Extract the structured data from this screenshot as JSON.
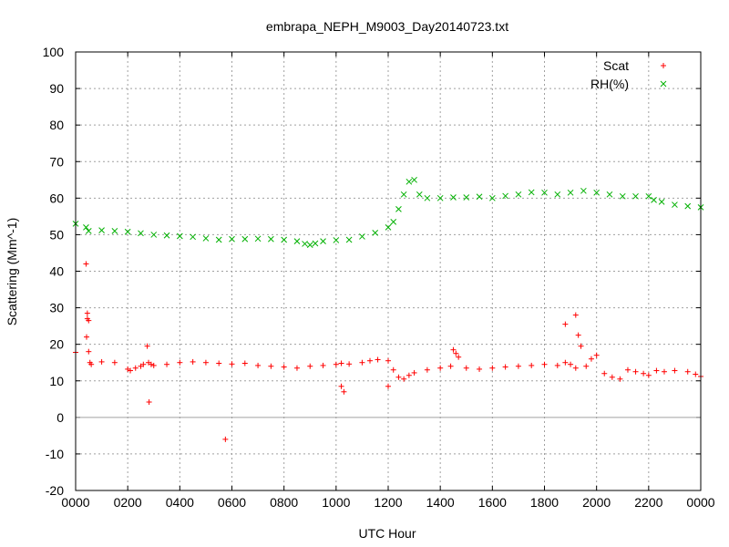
{
  "chart_data": {
    "type": "scatter",
    "title": "embrapa_NEPH_M9003_Day20140723.txt",
    "xlabel": "UTC Hour",
    "ylabel": "Scattering (Mm^-1)",
    "xlim": [
      0,
      24
    ],
    "ylim": [
      -20,
      100
    ],
    "grid": true,
    "legend_position": "top-right",
    "x_ticks": [
      0,
      2,
      4,
      6,
      8,
      10,
      12,
      14,
      16,
      18,
      20,
      22,
      24
    ],
    "x_tick_labels": [
      "0000",
      "0200",
      "0400",
      "0600",
      "0800",
      "1000",
      "1200",
      "1400",
      "1600",
      "1800",
      "2000",
      "2200",
      "0000"
    ],
    "y_ticks": [
      -20,
      -10,
      0,
      10,
      20,
      30,
      40,
      50,
      60,
      70,
      80,
      90,
      100
    ],
    "y_tick_labels": [
      "-20",
      "-10",
      "0",
      "10",
      "20",
      "30",
      "40",
      "50",
      "60",
      "70",
      "80",
      "90",
      "100"
    ],
    "series": [
      {
        "name": "Scat",
        "marker": "plus",
        "color": "#ff0000",
        "x": [
          0.0,
          0.4,
          0.45,
          0.5,
          0.55,
          0.6,
          1.0,
          1.5,
          2.0,
          2.1,
          2.3,
          2.5,
          2.6,
          2.8,
          2.9,
          3.0,
          3.5,
          4.0,
          4.5,
          5.0,
          5.5,
          6.0,
          6.5,
          7.0,
          7.5,
          8.0,
          8.5,
          9.0,
          9.5,
          10.0,
          10.2,
          10.5,
          11.0,
          11.3,
          11.6,
          12.0,
          12.2,
          12.4,
          12.6,
          12.8,
          13.0,
          13.5,
          14.0,
          14.4,
          14.5,
          14.6,
          14.7,
          15.0,
          15.5,
          16.0,
          16.5,
          17.0,
          17.5,
          18.0,
          18.5,
          18.8,
          19.0,
          19.2,
          19.4,
          19.6,
          19.8,
          20.0,
          20.3,
          20.6,
          20.9,
          21.2,
          21.5,
          21.8,
          22.0,
          22.3,
          22.6,
          23.0,
          23.5,
          23.8,
          24.0,
          0.45,
          0.42,
          0.5,
          2.82,
          5.75,
          2.75,
          10.2,
          10.3,
          18.8,
          19.2,
          19.3,
          12.0
        ],
        "y": [
          17.8,
          42,
          27,
          18,
          15,
          14.5,
          15.2,
          15,
          13.2,
          12.8,
          13.5,
          14,
          14.5,
          15,
          14.5,
          14.2,
          14.5,
          15,
          15.2,
          15,
          14.8,
          14.6,
          14.8,
          14.2,
          14,
          13.8,
          13.5,
          14,
          14.2,
          14.5,
          14.8,
          14.6,
          15,
          15.5,
          15.8,
          15.5,
          13,
          11,
          10.5,
          11.5,
          12.2,
          13,
          13.5,
          14,
          18.5,
          17.5,
          16.5,
          13.5,
          13.2,
          13.5,
          13.8,
          14,
          14.2,
          14.5,
          14.2,
          15,
          14.5,
          13.5,
          19.5,
          14,
          16,
          17,
          12,
          11,
          10.5,
          13,
          12.5,
          12,
          11.5,
          12.8,
          12.5,
          12.8,
          12.5,
          11.8,
          11.2,
          28.5,
          22,
          26.5,
          4.2,
          -6,
          19.5,
          8.5,
          7,
          25.5,
          28,
          22.5,
          8.5
        ]
      },
      {
        "name": "RH(%)",
        "marker": "cross",
        "color": "#00b000",
        "x": [
          0.0,
          0.4,
          0.5,
          1.0,
          1.5,
          2.0,
          2.5,
          3.0,
          3.5,
          4.0,
          4.5,
          5.0,
          5.5,
          6.0,
          6.5,
          7.0,
          7.5,
          8.0,
          8.5,
          8.8,
          9.0,
          9.2,
          9.5,
          10.0,
          10.5,
          11.0,
          11.5,
          12.0,
          12.2,
          12.4,
          12.6,
          12.8,
          13.0,
          13.2,
          13.5,
          14.0,
          14.5,
          15.0,
          15.5,
          16.0,
          16.5,
          17.0,
          17.5,
          18.0,
          18.5,
          19.0,
          19.5,
          20.0,
          20.5,
          21.0,
          21.5,
          22.0,
          22.2,
          22.5,
          23.0,
          23.5,
          24.0
        ],
        "y": [
          53,
          52,
          51,
          51.2,
          51,
          50.8,
          50.4,
          50,
          49.8,
          49.6,
          49.4,
          49,
          48.6,
          48.8,
          48.8,
          48.9,
          48.8,
          48.6,
          48.2,
          47.5,
          47.2,
          47.6,
          48.2,
          48.5,
          48.6,
          49.5,
          50.5,
          52,
          53.5,
          57,
          61,
          64.5,
          65,
          61,
          60,
          60,
          60.2,
          60.2,
          60.4,
          60,
          60.6,
          61,
          61.6,
          61.5,
          61,
          61.5,
          62,
          61.5,
          61,
          60.5,
          60.5,
          60.5,
          59.5,
          59,
          58.2,
          57.8,
          57.5
        ]
      }
    ]
  }
}
